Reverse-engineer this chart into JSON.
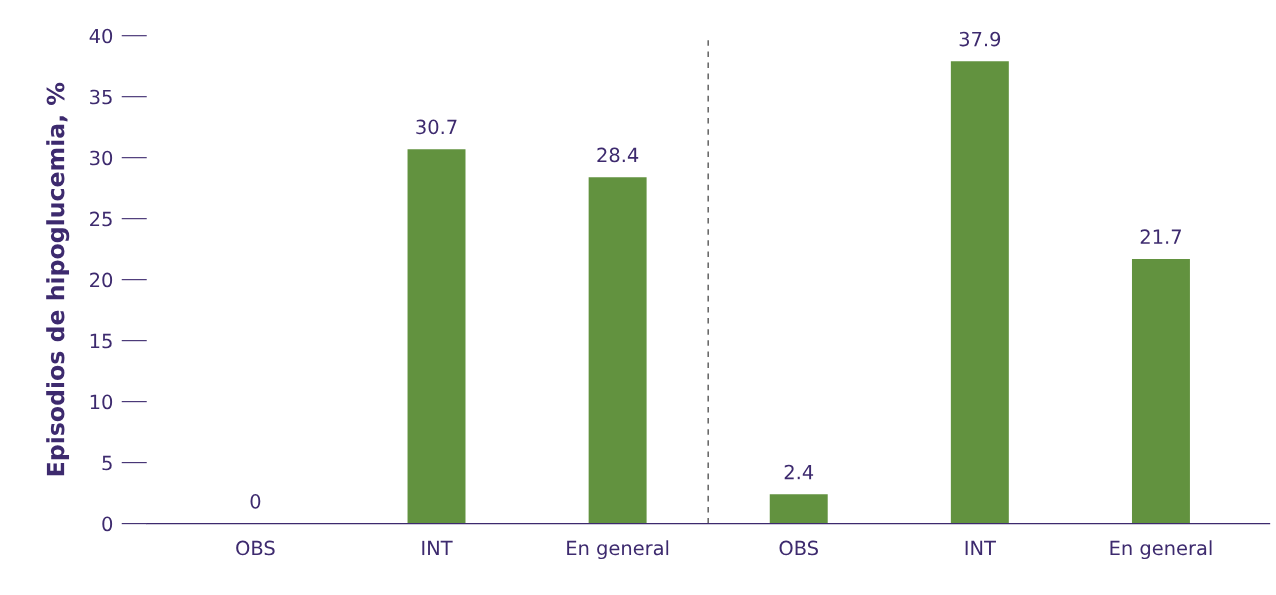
{
  "chart_data": {
    "type": "bar",
    "ylabel": "Episodios de hipoglucemia, %",
    "categories": [
      "OBS",
      "INT",
      "En general",
      "OBS",
      "INT",
      "En general"
    ],
    "values": [
      0,
      30.7,
      28.4,
      2.4,
      37.9,
      21.7
    ],
    "color": "#62923f",
    "ylim": [
      0,
      40
    ],
    "yticks": [
      0,
      5,
      10,
      15,
      20,
      25,
      30,
      35,
      40
    ],
    "grid": false,
    "data_labels": true
  }
}
